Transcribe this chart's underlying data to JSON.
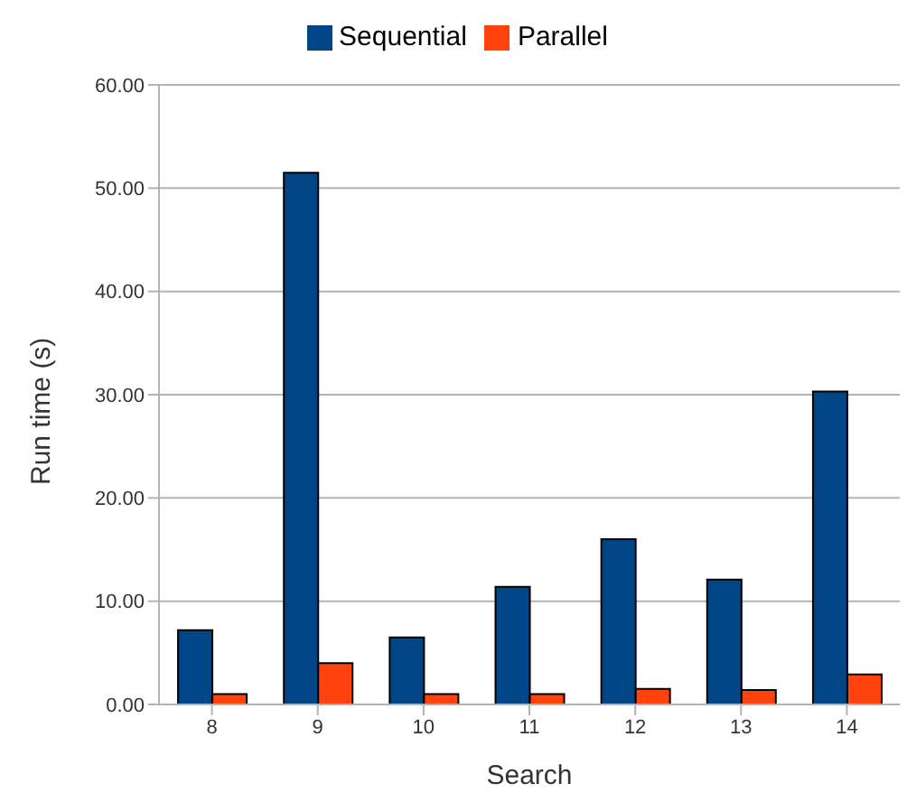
{
  "chart_data": {
    "type": "bar",
    "xlabel": "Search",
    "ylabel": "Run time (s)",
    "categories": [
      "8",
      "9",
      "10",
      "11",
      "12",
      "13",
      "14"
    ],
    "series": [
      {
        "name": "Sequential",
        "color": "#004586",
        "values": [
          7.2,
          51.5,
          6.5,
          11.4,
          16.0,
          12.1,
          30.3
        ]
      },
      {
        "name": "Parallel",
        "color": "#ff420e",
        "values": [
          1.0,
          4.0,
          1.0,
          1.0,
          1.5,
          1.4,
          2.9
        ]
      }
    ],
    "ylim": [
      0,
      60
    ],
    "yticks": [
      {
        "value": 0,
        "label": "0.00"
      },
      {
        "value": 10,
        "label": "10.00"
      },
      {
        "value": 20,
        "label": "20.00"
      },
      {
        "value": 30,
        "label": "30.00"
      },
      {
        "value": 40,
        "label": "40.00"
      },
      {
        "value": 50,
        "label": "50.00"
      },
      {
        "value": 60,
        "label": "60.00"
      }
    ],
    "grid": "y",
    "legend": "top"
  }
}
